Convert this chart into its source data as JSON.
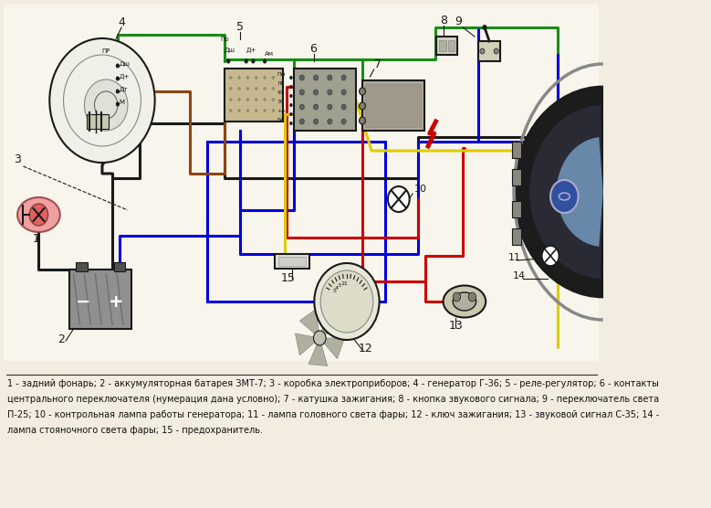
{
  "bg_color": "#f2ede0",
  "diagram_bg": "#f0ebe0",
  "caption_lines": [
    "1 - задний фонарь; 2 - аккумуляторная батарея ЗМТ-7; 3 - коробка электроприборов; 4 - генератор Г-36; 5 - реле-регулятор; 6 - контакты",
    "центрального переключателя (нумерация дана условно); 7 - катушка зажигания; 8 - кнопка звукового сигнала; 9 - переключатель света",
    "П-25; 10 - контрольная лампа работы генератора; 11 - лампа головного света фары; 12 - ключ зажигания; 13 - звуковой сигнал С-35; 14 -",
    "лампа стояночного света фары; 15 - предохранитель."
  ],
  "wire_colors": {
    "black": "#1a1a1a",
    "green": "#1a8c1a",
    "brown": "#8B4513",
    "blue": "#0000dd",
    "red": "#cc0000",
    "yellow": "#ddcc00"
  }
}
